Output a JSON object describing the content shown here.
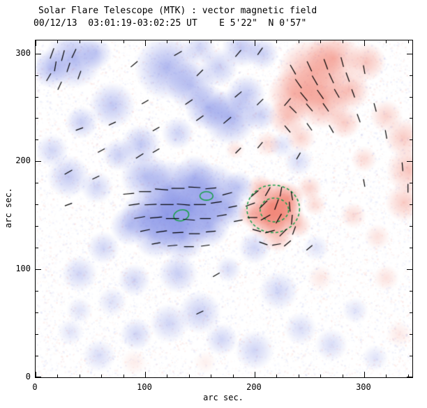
{
  "title": "Solar Flare Telescope (MTK) : vector magnetic field",
  "subtitle": "00/12/13  03:01:19-03:02:25 UT    E 5'22\"  N 0'57\"",
  "chart_data": {
    "type": "heatmap",
    "title": "Solar Flare Telescope (MTK) : vector magnetic field",
    "subtitle": "00/12/13  03:01:19-03:02:25 UT    E 5'22\"  N 0'57\"",
    "xlabel": "arc sec.",
    "ylabel": "arc sec.",
    "xlim": [
      0,
      344
    ],
    "ylim": [
      0,
      312
    ],
    "xticks": [
      0,
      100,
      200,
      300
    ],
    "yticks": [
      0,
      100,
      200,
      300
    ],
    "minor_tick_interval": 20,
    "legend": "blue = negative polarity, red = positive polarity, black segments = transverse field vectors, green = contours",
    "colors": {
      "negative": "#6272e0",
      "positive": "#ef6a58",
      "contour": "#1ca04c",
      "vector": "#000000",
      "frame": "#000000"
    },
    "noise": {
      "count": 15000,
      "seed": 7,
      "alpha": 0.1
    },
    "polarity_blobs": {
      "negative": [
        [
          35,
          295,
          18,
          0.5
        ],
        [
          14,
          286,
          12,
          0.45
        ],
        [
          55,
          300,
          10,
          0.35
        ],
        [
          70,
          252,
          14,
          0.4
        ],
        [
          42,
          236,
          10,
          0.35
        ],
        [
          15,
          210,
          10,
          0.3
        ],
        [
          120,
          287,
          20,
          0.5
        ],
        [
          142,
          270,
          15,
          0.45
        ],
        [
          150,
          305,
          10,
          0.32
        ],
        [
          167,
          287,
          12,
          0.35
        ],
        [
          157,
          250,
          14,
          0.5
        ],
        [
          177,
          241,
          17,
          0.55
        ],
        [
          192,
          262,
          12,
          0.4
        ],
        [
          205,
          243,
          10,
          0.35
        ],
        [
          188,
          305,
          12,
          0.4
        ],
        [
          207,
          300,
          10,
          0.35
        ],
        [
          96,
          216,
          12,
          0.4
        ],
        [
          76,
          206,
          10,
          0.35
        ],
        [
          130,
          226,
          10,
          0.32
        ],
        [
          30,
          186,
          13,
          0.38
        ],
        [
          56,
          176,
          10,
          0.3
        ],
        [
          100,
          186,
          15,
          0.45
        ],
        [
          121,
          176,
          17,
          0.5
        ],
        [
          145,
          186,
          13,
          0.45
        ],
        [
          160,
          170,
          19,
          0.58
        ],
        [
          140,
          156,
          21,
          0.62
        ],
        [
          120,
          150,
          19,
          0.6
        ],
        [
          100,
          150,
          15,
          0.5
        ],
        [
          86,
          140,
          12,
          0.42
        ],
        [
          110,
          131,
          14,
          0.45
        ],
        [
          134,
          130,
          15,
          0.5
        ],
        [
          158,
          140,
          13,
          0.5
        ],
        [
          175,
          156,
          12,
          0.45
        ],
        [
          185,
          176,
          10,
          0.4
        ],
        [
          240,
          200,
          9,
          0.25
        ],
        [
          62,
          120,
          10,
          0.3
        ],
        [
          40,
          96,
          11,
          0.3
        ],
        [
          90,
          90,
          10,
          0.3
        ],
        [
          130,
          96,
          12,
          0.35
        ],
        [
          200,
          120,
          10,
          0.3
        ],
        [
          176,
          100,
          8,
          0.25
        ],
        [
          222,
          80,
          12,
          0.3
        ],
        [
          150,
          60,
          13,
          0.35
        ],
        [
          122,
          50,
          12,
          0.3
        ],
        [
          92,
          40,
          10,
          0.3
        ],
        [
          170,
          35,
          10,
          0.3
        ],
        [
          200,
          25,
          12,
          0.3
        ],
        [
          242,
          45,
          10,
          0.25
        ],
        [
          270,
          30,
          10,
          0.25
        ],
        [
          58,
          20,
          10,
          0.25
        ],
        [
          32,
          42,
          8,
          0.2
        ],
        [
          292,
          62,
          8,
          0.2
        ],
        [
          256,
          120,
          8,
          0.2
        ],
        [
          310,
          18,
          8,
          0.2
        ],
        [
          70,
          70,
          9,
          0.22
        ],
        [
          40,
          62,
          8,
          0.2
        ],
        [
          225,
          215,
          8,
          0.22
        ]
      ],
      "positive": [
        [
          252,
          282,
          21,
          0.55
        ],
        [
          272,
          296,
          17,
          0.5
        ],
        [
          236,
          262,
          16,
          0.5
        ],
        [
          262,
          256,
          17,
          0.55
        ],
        [
          286,
          266,
          13,
          0.45
        ],
        [
          302,
          292,
          12,
          0.4
        ],
        [
          230,
          241,
          12,
          0.4
        ],
        [
          282,
          236,
          10,
          0.35
        ],
        [
          242,
          222,
          9,
          0.3
        ],
        [
          320,
          242,
          10,
          0.3
        ],
        [
          336,
          222,
          12,
          0.35
        ],
        [
          341,
          192,
          14,
          0.4
        ],
        [
          337,
          162,
          12,
          0.35
        ],
        [
          300,
          202,
          8,
          0.25
        ],
        [
          216,
          160,
          16,
          0.72
        ],
        [
          226,
          150,
          13,
          0.65
        ],
        [
          210,
          146,
          12,
          0.6
        ],
        [
          230,
          166,
          10,
          0.55
        ],
        [
          196,
          151,
          8,
          0.4
        ],
        [
          240,
          141,
          8,
          0.35
        ],
        [
          221,
          131,
          10,
          0.42
        ],
        [
          205,
          176,
          8,
          0.35
        ],
        [
          320,
          92,
          8,
          0.2
        ],
        [
          312,
          130,
          8,
          0.2
        ],
        [
          290,
          150,
          8,
          0.25
        ],
        [
          182,
          211,
          6,
          0.2
        ],
        [
          212,
          216,
          8,
          0.25
        ],
        [
          260,
          92,
          8,
          0.16
        ],
        [
          332,
          40,
          8,
          0.15
        ],
        [
          90,
          14,
          8,
          0.12
        ],
        [
          155,
          14,
          7,
          0.1
        ],
        [
          250,
          175,
          8,
          0.3
        ],
        [
          255,
          160,
          7,
          0.25
        ]
      ]
    },
    "contours": {
      "solid": [
        [
          133,
          150,
          7,
          5,
          -15
        ],
        [
          156,
          168,
          6,
          4,
          0
        ]
      ],
      "dashed": [
        [
          217,
          156,
          24,
          22,
          0
        ],
        [
          218,
          155,
          13,
          11,
          0
        ]
      ]
    },
    "vectors": [
      [
        15,
        300,
        70,
        10
      ],
      [
        25,
        298,
        75,
        10
      ],
      [
        35,
        300,
        65,
        9
      ],
      [
        18,
        288,
        80,
        9
      ],
      [
        30,
        287,
        72,
        9
      ],
      [
        12,
        278,
        60,
        8
      ],
      [
        40,
        280,
        70,
        8
      ],
      [
        22,
        270,
        65,
        8
      ],
      [
        90,
        290,
        40,
        8
      ],
      [
        130,
        300,
        30,
        8
      ],
      [
        150,
        282,
        45,
        8
      ],
      [
        185,
        300,
        50,
        8
      ],
      [
        205,
        302,
        55,
        8
      ],
      [
        140,
        255,
        35,
        8
      ],
      [
        100,
        255,
        30,
        7
      ],
      [
        185,
        262,
        40,
        8
      ],
      [
        205,
        255,
        45,
        8
      ],
      [
        230,
        255,
        50,
        9
      ],
      [
        70,
        235,
        25,
        7
      ],
      [
        110,
        230,
        30,
        7
      ],
      [
        40,
        230,
        20,
        7
      ],
      [
        150,
        240,
        35,
        8
      ],
      [
        175,
        238,
        40,
        9
      ],
      [
        235,
        285,
        120,
        10
      ],
      [
        250,
        288,
        115,
        10
      ],
      [
        265,
        290,
        110,
        10
      ],
      [
        280,
        292,
        105,
        9
      ],
      [
        240,
        272,
        125,
        10
      ],
      [
        255,
        275,
        120,
        10
      ],
      [
        270,
        277,
        115,
        10
      ],
      [
        285,
        278,
        110,
        9
      ],
      [
        245,
        260,
        130,
        10
      ],
      [
        260,
        262,
        125,
        10
      ],
      [
        275,
        263,
        120,
        9
      ],
      [
        290,
        263,
        110,
        8
      ],
      [
        235,
        248,
        135,
        9
      ],
      [
        250,
        250,
        130,
        9
      ],
      [
        265,
        250,
        125,
        9
      ],
      [
        300,
        285,
        100,
        8
      ],
      [
        310,
        250,
        105,
        8
      ],
      [
        295,
        240,
        110,
        8
      ],
      [
        320,
        225,
        100,
        8
      ],
      [
        230,
        230,
        130,
        8
      ],
      [
        250,
        232,
        125,
        8
      ],
      [
        270,
        230,
        120,
        8
      ],
      [
        335,
        195,
        95,
        8
      ],
      [
        340,
        175,
        90,
        8
      ],
      [
        300,
        180,
        100,
        7
      ],
      [
        30,
        190,
        30,
        8
      ],
      [
        55,
        185,
        25,
        7
      ],
      [
        30,
        160,
        20,
        7
      ],
      [
        60,
        210,
        28,
        7
      ],
      [
        95,
        205,
        32,
        8
      ],
      [
        110,
        210,
        30,
        7
      ],
      [
        85,
        170,
        5,
        10
      ],
      [
        100,
        172,
        0,
        11
      ],
      [
        115,
        174,
        -5,
        12
      ],
      [
        130,
        175,
        0,
        12
      ],
      [
        145,
        176,
        -3,
        11
      ],
      [
        160,
        175,
        5,
        10
      ],
      [
        90,
        160,
        8,
        10
      ],
      [
        105,
        160,
        3,
        11
      ],
      [
        120,
        160,
        0,
        12
      ],
      [
        135,
        160,
        -5,
        12
      ],
      [
        150,
        160,
        0,
        11
      ],
      [
        165,
        162,
        8,
        10
      ],
      [
        95,
        148,
        10,
        10
      ],
      [
        110,
        148,
        5,
        11
      ],
      [
        125,
        147,
        0,
        12
      ],
      [
        140,
        146,
        -5,
        11
      ],
      [
        155,
        147,
        0,
        10
      ],
      [
        170,
        150,
        10,
        9
      ],
      [
        100,
        136,
        12,
        9
      ],
      [
        115,
        135,
        8,
        10
      ],
      [
        130,
        134,
        3,
        10
      ],
      [
        145,
        133,
        0,
        10
      ],
      [
        160,
        135,
        5,
        9
      ],
      [
        110,
        124,
        10,
        8
      ],
      [
        125,
        122,
        5,
        9
      ],
      [
        140,
        121,
        0,
        9
      ],
      [
        155,
        122,
        8,
        8
      ],
      [
        175,
        170,
        15,
        9
      ],
      [
        180,
        158,
        12,
        8
      ],
      [
        185,
        145,
        10,
        8
      ],
      [
        200,
        170,
        40,
        9
      ],
      [
        212,
        172,
        60,
        9
      ],
      [
        224,
        172,
        80,
        9
      ],
      [
        234,
        168,
        100,
        8
      ],
      [
        196,
        160,
        20,
        9
      ],
      [
        208,
        160,
        45,
        10
      ],
      [
        220,
        160,
        70,
        10
      ],
      [
        232,
        158,
        95,
        9
      ],
      [
        198,
        148,
        0,
        9
      ],
      [
        210,
        148,
        30,
        10
      ],
      [
        222,
        147,
        60,
        10
      ],
      [
        234,
        146,
        85,
        9
      ],
      [
        202,
        136,
        -15,
        8
      ],
      [
        214,
        135,
        15,
        9
      ],
      [
        226,
        134,
        45,
        9
      ],
      [
        236,
        136,
        70,
        8
      ],
      [
        208,
        124,
        -20,
        8
      ],
      [
        220,
        123,
        10,
        8
      ],
      [
        230,
        124,
        40,
        8
      ],
      [
        205,
        215,
        50,
        7
      ],
      [
        185,
        210,
        45,
        7
      ],
      [
        240,
        205,
        60,
        7
      ],
      [
        165,
        95,
        30,
        7
      ],
      [
        150,
        60,
        25,
        7
      ],
      [
        250,
        120,
        40,
        7
      ]
    ]
  }
}
